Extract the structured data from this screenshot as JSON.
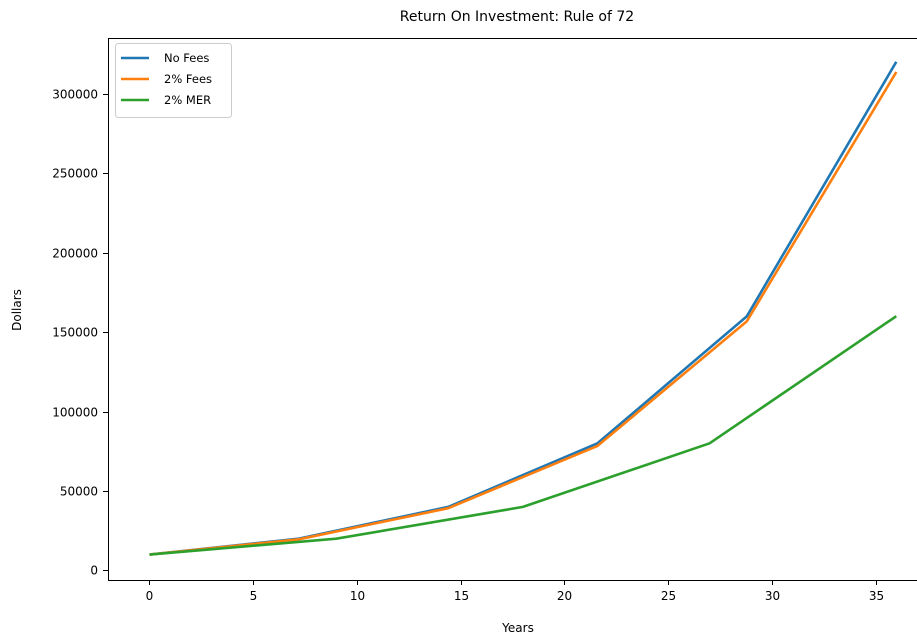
{
  "chart_data": {
    "type": "line",
    "title": "Return On Investment: Rule of 72",
    "xlabel": "Years",
    "ylabel": "Dollars",
    "xlim": [
      -2,
      37
    ],
    "ylim": [
      -6000,
      335000
    ],
    "xticks": [
      0,
      5,
      10,
      15,
      20,
      25,
      30,
      35
    ],
    "yticks": [
      0,
      50000,
      100000,
      150000,
      200000,
      250000,
      300000
    ],
    "grid": false,
    "legend_position": "top-left",
    "series": [
      {
        "name": "No Fees",
        "color": "#1f77b4",
        "x": [
          0,
          7.2,
          14.4,
          21.6,
          28.8,
          36
        ],
        "y": [
          10000,
          20000,
          40000,
          80000,
          160000,
          320000
        ]
      },
      {
        "name": "2% Fees",
        "color": "#ff7f0e",
        "x": [
          0,
          7.2,
          14.4,
          21.6,
          28.8,
          36
        ],
        "y": [
          10000,
          19600,
          39200,
          78400,
          156800,
          313600
        ]
      },
      {
        "name": "2% MER",
        "color": "#2ca02c",
        "x": [
          0,
          9,
          18,
          27,
          36
        ],
        "y": [
          10000,
          20000,
          40000,
          80000,
          160000
        ]
      }
    ]
  }
}
